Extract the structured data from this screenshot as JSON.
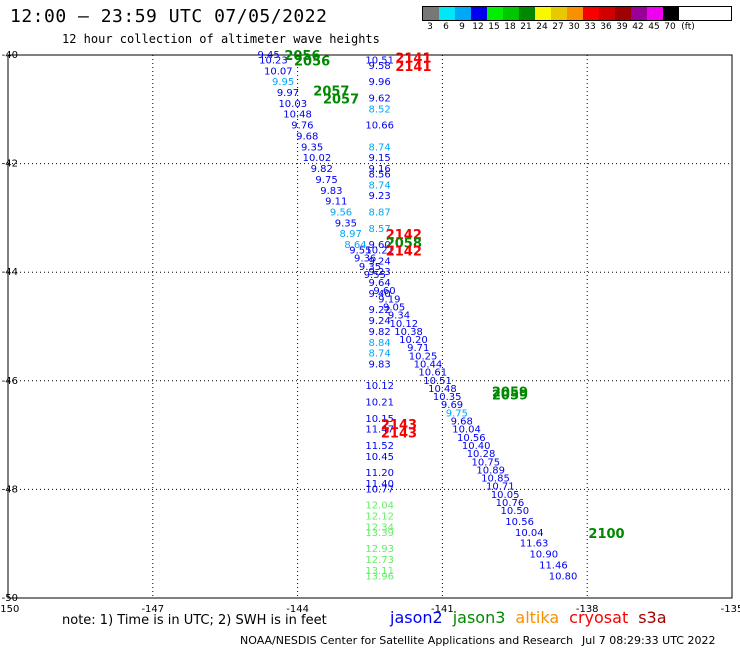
{
  "header": {
    "title": "12:00 – 23:59 UTC 07/05/2022",
    "subtitle": "12 hour collection of altimeter wave heights"
  },
  "color_scale": {
    "unit": "(ft)",
    "bins": [
      {
        "label": "3",
        "color": "#777777"
      },
      {
        "label": "6",
        "color": "#00e8f8"
      },
      {
        "label": "9",
        "color": "#00a8f8"
      },
      {
        "label": "12",
        "color": "#0000f0"
      },
      {
        "label": "15",
        "color": "#00f000"
      },
      {
        "label": "18",
        "color": "#00c800"
      },
      {
        "label": "21",
        "color": "#008800"
      },
      {
        "label": "24",
        "color": "#f8f800"
      },
      {
        "label": "27",
        "color": "#e8c800"
      },
      {
        "label": "30",
        "color": "#f89000"
      },
      {
        "label": "33",
        "color": "#f80000"
      },
      {
        "label": "36",
        "color": "#d00000"
      },
      {
        "label": "39",
        "color": "#a00000"
      },
      {
        "label": "42",
        "color": "#980098"
      },
      {
        "label": "45",
        "color": "#f000f0"
      },
      {
        "label": "70",
        "color": "#000000"
      }
    ]
  },
  "note": "note: 1) Time is in UTC; 2) SWH is in feet",
  "legend": [
    {
      "name": "jason2",
      "color": "#0000f0"
    },
    {
      "name": "jason3",
      "color": "#008800"
    },
    {
      "name": "altika",
      "color": "#f89000"
    },
    {
      "name": "cryosat",
      "color": "#f80000"
    },
    {
      "name": "s3a",
      "color": "#a00000"
    }
  ],
  "footer": {
    "source": "NOAA/NESDIS Center for Satellite Applications and Research",
    "timestamp": "Jul  7 08:29:33 UTC 2022"
  },
  "chart_data": {
    "type": "scatter",
    "xlim": [
      -150,
      -135
    ],
    "ylim": [
      -50,
      -40
    ],
    "x_ticks": [
      "-150",
      "-147",
      "-144",
      "-141",
      "-138",
      "-135"
    ],
    "y_ticks": [
      "-40",
      "-42",
      "-44",
      "-46",
      "-48",
      "-50"
    ],
    "grid": "dotted",
    "palette": {
      "c": "#00a8f8",
      "b": "#0000f0",
      "l": "#66ee66",
      "r": "#f80000",
      "g": "#008800"
    },
    "track_a": {
      "description_free": true,
      "points": [
        [
          -144.6,
          -40.0,
          "9.45",
          "b"
        ],
        [
          -144.5,
          -40.1,
          "10.23",
          "b"
        ],
        [
          -144.4,
          -40.3,
          "10.07",
          "b"
        ],
        [
          -144.3,
          -40.5,
          "9.95",
          "c"
        ],
        [
          -144.2,
          -40.7,
          "9.97",
          "b"
        ],
        [
          -144.1,
          -40.9,
          "10.03",
          "b"
        ],
        [
          -144.0,
          -41.1,
          "10.48",
          "b"
        ],
        [
          -143.9,
          -41.3,
          "9.76",
          "b"
        ],
        [
          -143.8,
          -41.5,
          "9.68",
          "b"
        ],
        [
          -143.7,
          -41.7,
          "9.35",
          "b"
        ],
        [
          -143.6,
          -41.9,
          "10.02",
          "b"
        ],
        [
          -143.5,
          -42.1,
          "9.82",
          "b"
        ],
        [
          -143.4,
          -42.3,
          "9.75",
          "b"
        ],
        [
          -143.3,
          -42.5,
          "9.83",
          "b"
        ],
        [
          -143.2,
          -42.7,
          "9.11",
          "b"
        ],
        [
          -143.1,
          -42.9,
          "9.56",
          "c"
        ],
        [
          -143.0,
          -43.1,
          "9.35",
          "b"
        ],
        [
          -142.9,
          -43.3,
          "8.97",
          "c"
        ],
        [
          -142.8,
          -43.5,
          "8.64",
          "c"
        ],
        [
          -142.7,
          -43.6,
          "9.55",
          "b"
        ],
        [
          -142.6,
          -43.75,
          "9.36",
          "b"
        ],
        [
          -142.5,
          -43.9,
          "9.35",
          "b"
        ],
        [
          -142.4,
          -44.05,
          "9.55",
          "b"
        ],
        [
          -142.3,
          -44.2,
          "9.64",
          "b"
        ],
        [
          -142.2,
          -44.35,
          "9.60",
          "b"
        ],
        [
          -142.1,
          -44.5,
          "9.19",
          "b"
        ],
        [
          -142.0,
          -44.65,
          "9.05",
          "b"
        ],
        [
          -141.9,
          -44.8,
          "9.34",
          "b"
        ],
        [
          -141.8,
          -44.95,
          "10.12",
          "b"
        ],
        [
          -141.7,
          -45.1,
          "10.38",
          "b"
        ],
        [
          -141.6,
          -45.25,
          "10.20",
          "b"
        ],
        [
          -141.5,
          -45.4,
          "9.71",
          "b"
        ],
        [
          -141.4,
          -45.55,
          "10.25",
          "b"
        ],
        [
          -141.3,
          -45.7,
          "10.44",
          "b"
        ],
        [
          -141.2,
          -45.85,
          "10.61",
          "b"
        ],
        [
          -141.1,
          -46.0,
          "10.51",
          "b"
        ],
        [
          -141.0,
          -46.15,
          "10.48",
          "b"
        ],
        [
          -140.9,
          -46.3,
          "10.35",
          "b"
        ],
        [
          -140.8,
          -46.45,
          "9.69",
          "b"
        ],
        [
          -140.7,
          -46.6,
          "9.75",
          "c"
        ],
        [
          -140.6,
          -46.75,
          "9.68",
          "b"
        ],
        [
          -140.5,
          -46.9,
          "10.04",
          "b"
        ],
        [
          -140.4,
          -47.05,
          "10.56",
          "b"
        ],
        [
          -140.3,
          -47.2,
          "10.40",
          "b"
        ],
        [
          -140.2,
          -47.35,
          "10.28",
          "b"
        ],
        [
          -140.1,
          -47.5,
          "10.75",
          "b"
        ],
        [
          -140.0,
          -47.65,
          "10.89",
          "b"
        ],
        [
          -139.9,
          -47.8,
          "10.85",
          "b"
        ],
        [
          -139.8,
          -47.95,
          "10.71",
          "b"
        ],
        [
          -139.7,
          -48.1,
          "10.05",
          "b"
        ],
        [
          -139.6,
          -48.25,
          "10.76",
          "b"
        ],
        [
          -139.5,
          -48.4,
          "10.50",
          "b"
        ],
        [
          -139.4,
          -48.6,
          "10.56",
          "b"
        ],
        [
          -139.2,
          -48.8,
          "10.04",
          "b"
        ],
        [
          -139.1,
          -49.0,
          "11.63",
          "b"
        ],
        [
          -138.9,
          -49.2,
          "10.90",
          "b"
        ],
        [
          -138.7,
          -49.4,
          "11.46",
          "b"
        ],
        [
          -138.5,
          -49.6,
          "10.80",
          "b"
        ]
      ]
    },
    "track_b": {
      "points": [
        [
          -142.3,
          -40.1,
          "10.51",
          "b"
        ],
        [
          -142.3,
          -40.2,
          "9.58",
          "b"
        ],
        [
          -142.3,
          -40.5,
          "9.96",
          "b"
        ],
        [
          -142.3,
          -40.8,
          "9.62",
          "b"
        ],
        [
          -142.3,
          -41.0,
          "8.52",
          "c"
        ],
        [
          -142.3,
          -41.3,
          "10.66",
          "b"
        ],
        [
          -142.3,
          -41.7,
          "8.74",
          "c"
        ],
        [
          -142.3,
          -41.9,
          "9.15",
          "b"
        ],
        [
          -142.3,
          -42.1,
          "9.16",
          "b"
        ],
        [
          -142.3,
          -42.2,
          "8.56",
          "b"
        ],
        [
          -142.3,
          -42.4,
          "8.74",
          "c"
        ],
        [
          -142.3,
          -42.6,
          "9.23",
          "b"
        ],
        [
          -142.3,
          -42.9,
          "8.87",
          "c"
        ],
        [
          -142.3,
          -43.2,
          "8.57",
          "c"
        ],
        [
          -142.3,
          -43.5,
          "9.60",
          "b"
        ],
        [
          -142.3,
          -43.6,
          "10.21",
          "b"
        ],
        [
          -142.3,
          -43.8,
          "9.24",
          "b"
        ],
        [
          -142.3,
          -44.0,
          "9.23",
          "b"
        ],
        [
          -142.3,
          -44.4,
          "9.40",
          "b"
        ],
        [
          -142.3,
          -44.7,
          "9.22",
          "b"
        ],
        [
          -142.3,
          -44.9,
          "9.24",
          "b"
        ],
        [
          -142.3,
          -45.1,
          "9.82",
          "b"
        ],
        [
          -142.3,
          -45.3,
          "8.84",
          "c"
        ],
        [
          -142.3,
          -45.5,
          "8.74",
          "c"
        ],
        [
          -142.3,
          -45.7,
          "9.83",
          "b"
        ],
        [
          -142.3,
          -46.1,
          "10.12",
          "b"
        ],
        [
          -142.3,
          -46.4,
          "10.21",
          "b"
        ],
        [
          -142.3,
          -46.7,
          "10.15",
          "b"
        ],
        [
          -142.3,
          -46.9,
          "11.47",
          "b"
        ],
        [
          -142.3,
          -47.2,
          "11.52",
          "b"
        ],
        [
          -142.3,
          -47.4,
          "10.45",
          "b"
        ],
        [
          -142.3,
          -47.7,
          "11.20",
          "b"
        ],
        [
          -142.3,
          -47.9,
          "11.40",
          "b"
        ],
        [
          -142.3,
          -48.0,
          "10.77",
          "b"
        ],
        [
          -142.3,
          -48.3,
          "12.04",
          "l"
        ],
        [
          -142.3,
          -48.5,
          "12.12",
          "l"
        ],
        [
          -142.3,
          -48.7,
          "12.34",
          "l"
        ],
        [
          -142.3,
          -48.8,
          "13.39",
          "l"
        ],
        [
          -142.3,
          -49.1,
          "12.93",
          "l"
        ],
        [
          -142.3,
          -49.3,
          "12.73",
          "l"
        ],
        [
          -142.3,
          -49.5,
          "13.11",
          "l"
        ],
        [
          -142.3,
          -49.6,
          "13.96",
          "l"
        ]
      ]
    },
    "time_labels": [
      {
        "text": "2056",
        "color": "g"
      },
      {
        "text": "2056",
        "color": "g"
      },
      {
        "text": "2057",
        "color": "g"
      },
      {
        "text": "2057",
        "color": "g"
      },
      {
        "text": "2141",
        "color": "r"
      },
      {
        "text": "2141",
        "color": "r"
      },
      {
        "text": "2142",
        "color": "r"
      },
      {
        "text": "2058",
        "color": "g"
      },
      {
        "text": "2142",
        "color": "r"
      },
      {
        "text": "2059",
        "color": "g"
      },
      {
        "text": "2059",
        "color": "g"
      },
      {
        "text": "2143",
        "color": "r"
      },
      {
        "text": "2143",
        "color": "r"
      },
      {
        "text": "2100",
        "color": "g"
      }
    ]
  }
}
